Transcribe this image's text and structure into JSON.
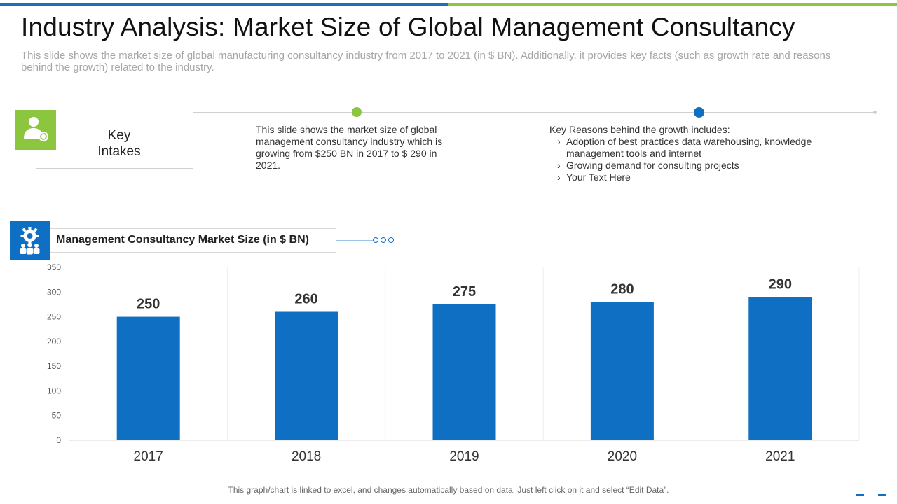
{
  "slide": {
    "title": "Industry Analysis: Market Size of Global Management Consultancy",
    "subtitle": "This slide shows the market size of global manufacturing  consultancy  industry from 2017 to 2021 (in $ BN). Additionally, it provides key facts (such as growth rate and reasons behind the growth) related to the industry.",
    "footer": "This graph/chart is linked to excel, and changes automatically based on data. Just left click on it and select “Edit Data”."
  },
  "key_intakes": {
    "label_line1": "Key",
    "label_line2": "Intakes",
    "fact": "This slide shows the market size of global management consultancy industry which is growing from $250 BN in 2017 to $ 290 in 2021.",
    "reasons_heading": "Key Reasons behind the growth includes:",
    "reasons": [
      "Adoption of best practices data warehousing, knowledge management tools and internet",
      "Growing demand for consulting projects",
      "Your Text Here"
    ]
  },
  "icons": {
    "intake_icon": "user-refresh-icon",
    "chart_icon": "gear-team-icon"
  },
  "colors": {
    "accent_blue": "#0f6fc2",
    "accent_green": "#8cc63f"
  },
  "chart_data": {
    "type": "bar",
    "title": "Management Consultancy Market Size (in $ BN)",
    "categories": [
      "2017",
      "2018",
      "2019",
      "2020",
      "2021"
    ],
    "values": [
      250,
      260,
      275,
      280,
      290
    ],
    "ylim": [
      0,
      350
    ],
    "yticks": [
      0,
      50,
      100,
      150,
      200,
      250,
      300,
      350
    ],
    "xlabel": "",
    "ylabel": "",
    "bar_color": "#0f6fc2",
    "data_labels": true
  }
}
